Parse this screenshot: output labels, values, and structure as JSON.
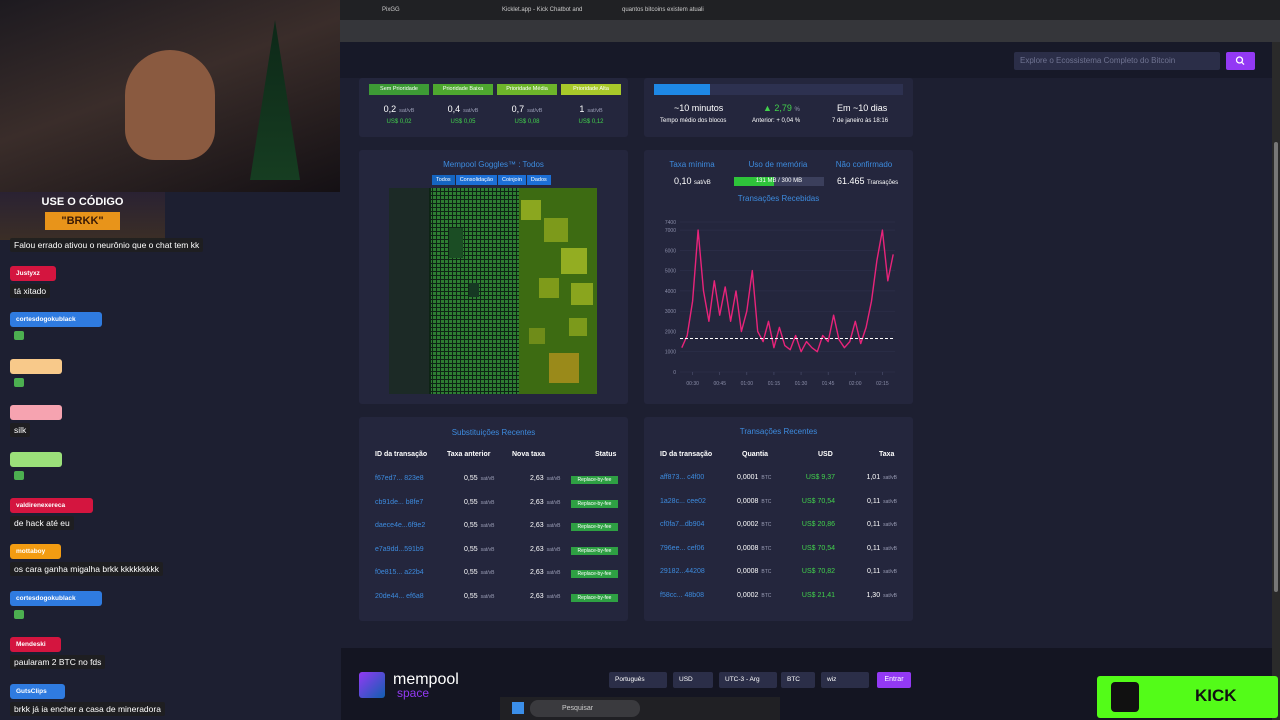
{
  "browser": {
    "tabs": [
      "PixGG",
      "Kicklet.app - Kick Chatbot and",
      "quantos bitcoins existem atuali"
    ]
  },
  "header": {
    "search_placeholder": "Explore o Ecossistema Completo do Bitcoin"
  },
  "fees": {
    "unit": "sat/vB",
    "items": [
      {
        "label": "Sem Prioridade",
        "rate": "0,2",
        "usd": "US$ 0,02"
      },
      {
        "label": "Prioridade Baixa",
        "rate": "0,4",
        "usd": "US$ 0,05"
      },
      {
        "label": "Prioridade Média",
        "rate": "0,7",
        "usd": "US$ 0,08"
      },
      {
        "label": "Prioridade Alta",
        "rate": "1",
        "usd": "US$ 0,12"
      }
    ]
  },
  "difficulty": {
    "block_time": "~10 minutos",
    "block_time_label": "Tempo médio dos blocos",
    "change": "▲ 2,79",
    "change_unit": "%",
    "previous": "Anterior: + 0,04 %",
    "eta": "Em ~10 dias",
    "eta_date": "7 de janeiro às 18:16"
  },
  "goggles": {
    "title": "Mempool Goggles™ : Todos",
    "filters": [
      "Todos",
      "Consolidação",
      "Coinjoin",
      "Dados"
    ]
  },
  "stats": {
    "min_fee_label": "Taxa mínima",
    "min_fee": "0,10",
    "min_fee_unit": "sat/vB",
    "memory_label": "Uso de memória",
    "memory": "131 MB / 300 MB",
    "unconfirmed_label": "Não confirmado",
    "unconfirmed": "61.465",
    "unconfirmed_unit": "Transações"
  },
  "chart_data": {
    "type": "line",
    "title": "Transações Recebidas",
    "x": [
      24,
      27,
      30,
      33,
      36,
      39,
      42,
      45,
      48,
      51,
      54,
      57,
      60,
      63,
      66,
      69,
      72,
      75,
      78,
      81,
      84,
      87,
      90,
      93,
      96,
      99,
      102,
      105,
      108,
      111,
      114,
      117,
      120,
      123,
      126,
      129,
      132,
      135,
      138,
      141
    ],
    "values": [
      1200,
      1800,
      3500,
      7000,
      4000,
      2500,
      4500,
      2800,
      4200,
      2500,
      4000,
      2000,
      3000,
      5000,
      2000,
      1500,
      2500,
      1200,
      2200,
      1300,
      1100,
      1800,
      1000,
      1500,
      1200,
      1000,
      1800,
      1500,
      2800,
      1600,
      1200,
      1500,
      2500,
      1400,
      2200,
      3500,
      5500,
      7000,
      4500,
      5800
    ],
    "xlim": [
      23,
      142
    ],
    "ylim": [
      0,
      7400
    ],
    "xticks": [
      {
        "value": 30,
        "label": "00:30"
      },
      {
        "value": 45,
        "label": "00:45"
      },
      {
        "value": 60,
        "label": "01:00"
      },
      {
        "value": 75,
        "label": "01:15"
      },
      {
        "value": 90,
        "label": "01:30"
      },
      {
        "value": 105,
        "label": "01:45"
      },
      {
        "value": 120,
        "label": "02:00"
      },
      {
        "value": 135,
        "label": "02:15"
      }
    ],
    "yticks": [
      0,
      1000,
      2000,
      3000,
      4000,
      5000,
      6000,
      7000,
      7400
    ],
    "reference_line": 1650,
    "grid": true
  },
  "replacements": {
    "title": "Substituições Recentes",
    "headers": [
      "ID da transação",
      "Taxa anterior",
      "Nova taxa",
      "Status"
    ],
    "unit": "sat/vB",
    "rows": [
      [
        "f67ed7... 823e8",
        "0,55",
        "2,63",
        "Replace-by-fee"
      ],
      [
        "cb91de... b8fe7",
        "0,55",
        "2,63",
        "Replace-by-fee"
      ],
      [
        "daece4e...6f9e2",
        "0,55",
        "2,63",
        "Replace-by-fee"
      ],
      [
        "e7a9dd...591b9",
        "0,55",
        "2,63",
        "Replace-by-fee"
      ],
      [
        "f0e815... a22b4",
        "0,55",
        "2,63",
        "Replace-by-fee"
      ],
      [
        "20de44... ef6a8",
        "0,55",
        "2,63",
        "Replace-by-fee"
      ]
    ]
  },
  "transactions": {
    "title": "Transações Recentes",
    "headers": [
      "ID da transação",
      "Quantia",
      "USD",
      "Taxa"
    ],
    "btc_unit": "BTC",
    "fee_unit": "sat/vB",
    "rows": [
      [
        "aff873... c4f00",
        "0,0001",
        "US$ 9,37",
        "1,01"
      ],
      [
        "1a28c... cee02",
        "0,0008",
        "US$ 70,54",
        "0,11"
      ],
      [
        "cf0fa7...db904",
        "0,0002",
        "US$ 20,86",
        "0,11"
      ],
      [
        "796ee... cef06",
        "0,0008",
        "US$ 70,54",
        "0,11"
      ],
      [
        "29182...44208",
        "0,0008",
        "US$ 70,82",
        "0,11"
      ],
      [
        "f58cc... 48b08",
        "0,0002",
        "US$ 21,41",
        "1,30"
      ]
    ]
  },
  "footer": {
    "brand": "mempool",
    "brand_sub": "space",
    "selects": [
      "Português",
      "USD",
      "UTC-3 - Arg",
      "BTC",
      "wiz"
    ],
    "button": "Entrar"
  },
  "stream": {
    "promo_title": "USE O CÓDIGO",
    "promo_code": "\"BRKK\"",
    "badge": "KICK",
    "chat": [
      {
        "message": "Falou errado ativou o neurônio que o chat tem kk"
      },
      {
        "user": "Justyxz",
        "color": "#d4153f",
        "message": "tá xitado"
      },
      {
        "user": "cortesdogokublack",
        "color": "#2f7be0"
      },
      {
        "color": "#f8c98a"
      },
      {
        "color": "#f6a3b0",
        "message": "silk"
      },
      {
        "color": "#9be07a"
      },
      {
        "user": "valdirenexereca",
        "color": "#d4153f",
        "message": "de hack até eu"
      },
      {
        "user": "mottaboy",
        "color": "#f39c12",
        "message": "os cara ganha migalha brkk kkkkkkkkk"
      },
      {
        "user": "cortesdogokublack",
        "color": "#2f7be0"
      },
      {
        "user": "Mendeski",
        "color": "#d4153f",
        "message": "paularam 2 BTC no fds"
      },
      {
        "user": "GutsClips",
        "color": "#2f7be0",
        "message": "brkk já ia encher a casa de mineradora"
      }
    ]
  },
  "taskbar": {
    "search": "Pesquisar"
  }
}
